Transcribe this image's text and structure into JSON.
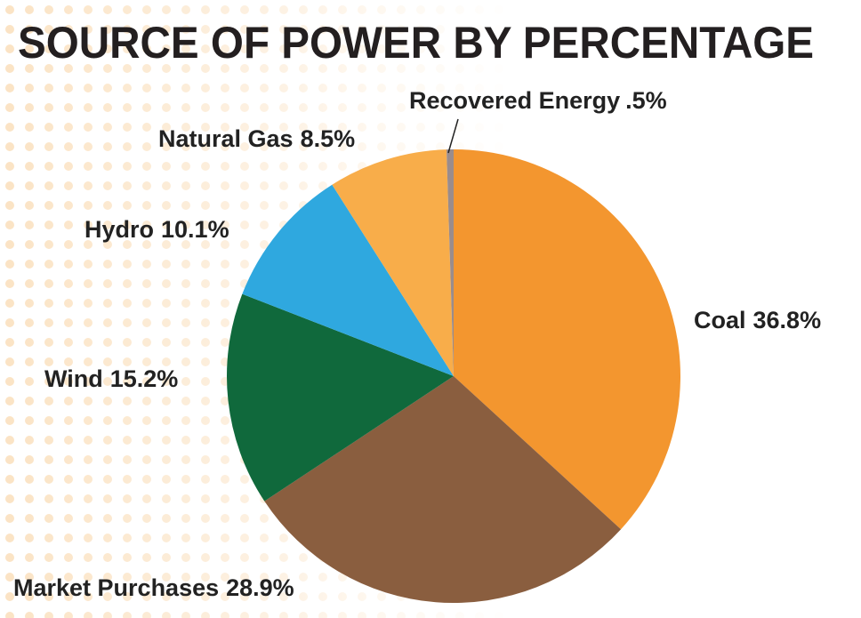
{
  "chart_data": {
    "type": "pie",
    "title": "SOURCE OF POWER BY PERCENTAGE",
    "categories": [
      "Coal",
      "Market Purchases",
      "Wind",
      "Hydro",
      "Natural Gas",
      "Recovered Energy"
    ],
    "values": [
      36.8,
      28.9,
      15.2,
      10.1,
      8.5,
      0.5
    ],
    "value_labels": [
      "36.8%",
      "28.9%",
      "15.2%",
      "10.1%",
      "8.5%",
      ".5%"
    ],
    "colors": [
      "#f3962f",
      "#8a5e3f",
      "#10693c",
      "#2fa8df",
      "#f8ad4a",
      "#9a8c8c"
    ]
  }
}
